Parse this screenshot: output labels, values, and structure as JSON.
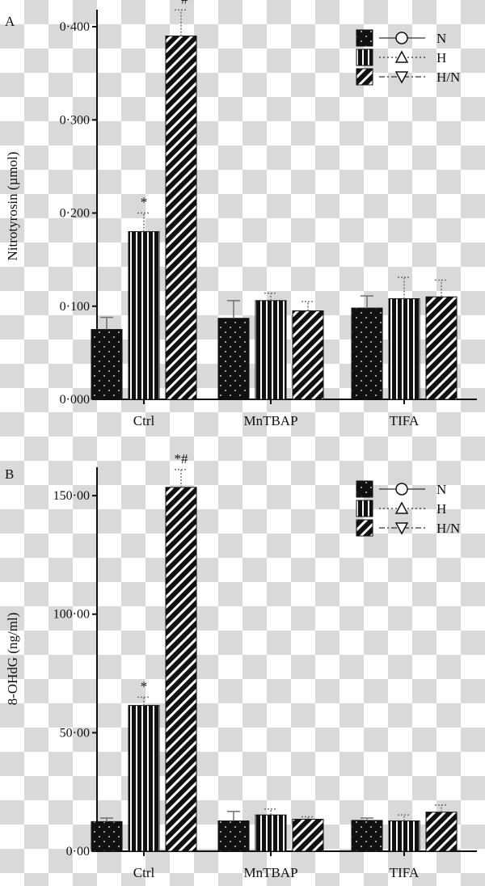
{
  "colors": {
    "ink": "#111111",
    "bar_fill": "#111111",
    "pattern_mark": "#ffffff",
    "error_bar": "#777777"
  },
  "legend_items": [
    {
      "label": "N",
      "pattern": "dots",
      "marker": "circle",
      "line": "solid"
    },
    {
      "label": "H",
      "pattern": "vertical-stripes",
      "marker": "triangle-up",
      "line": "dotted"
    },
    {
      "label": "H/N",
      "pattern": "diagonal-stripes",
      "marker": "triangle-down",
      "line": "dash-dot"
    }
  ],
  "chart_data": [
    {
      "panel": "A",
      "type": "bar",
      "ylabel": "Nitrotyrosin (µmol)",
      "ylim": [
        0,
        0.42
      ],
      "yticks": [
        {
          "value": 0.0,
          "label": "0·000"
        },
        {
          "value": 0.1,
          "label": "0·100"
        },
        {
          "value": 0.2,
          "label": "0·200"
        },
        {
          "value": 0.3,
          "label": "0·300"
        },
        {
          "value": 0.4,
          "label": "0·400"
        }
      ],
      "categories": [
        "Ctrl",
        "MnTBAP",
        "TIFA"
      ],
      "series": [
        {
          "name": "N",
          "values": [
            0.075,
            0.087,
            0.098
          ],
          "errors": [
            0.013,
            0.019,
            0.013
          ],
          "annotations": [
            "",
            "",
            ""
          ]
        },
        {
          "name": "H",
          "values": [
            0.18,
            0.106,
            0.108
          ],
          "errors": [
            0.02,
            0.008,
            0.023
          ],
          "annotations": [
            "*",
            "",
            ""
          ]
        },
        {
          "name": "H/N",
          "values": [
            0.39,
            0.095,
            0.11
          ],
          "errors": [
            0.028,
            0.01,
            0.018
          ],
          "annotations": [
            "*#",
            "",
            ""
          ]
        }
      ],
      "legend": "top-right",
      "grid": false
    },
    {
      "panel": "B",
      "type": "bar",
      "ylabel": "8-OHdG (ng/ml)",
      "ylim": [
        0,
        163
      ],
      "yticks": [
        {
          "value": 0,
          "label": "0·00"
        },
        {
          "value": 50,
          "label": "50·00"
        },
        {
          "value": 100,
          "label": "100·00"
        },
        {
          "value": 150,
          "label": "150·00"
        }
      ],
      "categories": [
        "Ctrl",
        "MnTBAP",
        "TIFA"
      ],
      "series": [
        {
          "name": "N",
          "values": [
            12.5,
            12.8,
            13.0
          ],
          "errors": [
            1.5,
            4.0,
            1.0
          ],
          "annotations": [
            "",
            "",
            ""
          ]
        },
        {
          "name": "H",
          "values": [
            61.5,
            15.3,
            12.8
          ],
          "errors": [
            3.5,
            2.5,
            2.5
          ],
          "annotations": [
            "*",
            "",
            ""
          ]
        },
        {
          "name": "H/N",
          "values": [
            153.5,
            13.5,
            16.5
          ],
          "errors": [
            7.5,
            1.0,
            3.0
          ],
          "annotations": [
            "*#",
            "",
            ""
          ]
        }
      ],
      "legend": "top-right",
      "grid": false
    }
  ]
}
